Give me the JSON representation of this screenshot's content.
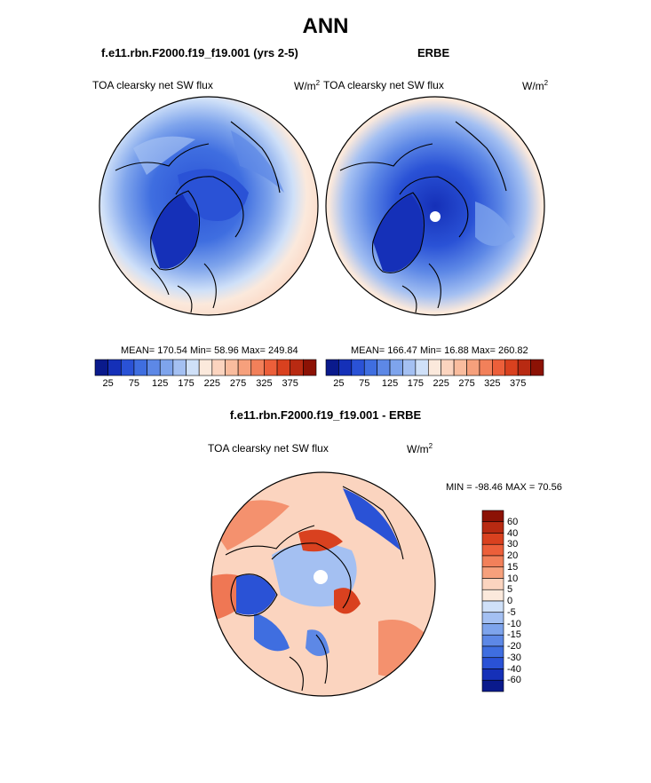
{
  "figure": {
    "title": "ANN",
    "left_title": "f.e11.rbn.F2000.f19_f19.001 (yrs 2-5)",
    "right_title": "ERBE",
    "diff_title": "f.e11.rbn.F2000.f19_f19.001 - ERBE"
  },
  "panels": {
    "model": {
      "variable": "TOA clearsky net SW flux",
      "units_base": "W/m",
      "units_exp": "2",
      "stats": "MEAN= 170.54  Min=  58.96  Max= 249.84"
    },
    "obs": {
      "variable": "TOA clearsky net SW flux",
      "units_base": "W/m",
      "units_exp": "2",
      "stats": "MEAN= 166.47  Min=  16.88  Max= 260.82"
    },
    "diff": {
      "variable": "TOA clearsky net SW flux",
      "units_base": "W/m",
      "units_exp": "2",
      "stats": "MIN = -98.46 MAX =  70.56"
    }
  },
  "colorbar_abs": {
    "colors": [
      "#0a1a8c",
      "#1530b8",
      "#2a52d6",
      "#3f6ee0",
      "#5d88e6",
      "#7ea4ec",
      "#a4c0f2",
      "#cfe0f8",
      "#fbe9dc",
      "#fbd4bf",
      "#f9bc9e",
      "#f6a07c",
      "#f2805a",
      "#ec5f3a",
      "#d9411f",
      "#b82a12",
      "#8c1205"
    ],
    "labels": [
      "25",
      "75",
      "125",
      "175",
      "225",
      "275",
      "325",
      "375"
    ]
  },
  "colorbar_diff": {
    "colors": [
      "#8c1205",
      "#b82a12",
      "#d9411f",
      "#ec5f3a",
      "#f2805a",
      "#f6a07c",
      "#fbd4bf",
      "#fbe9dc",
      "#cfe0f8",
      "#a4c0f2",
      "#7ea4ec",
      "#5d88e6",
      "#3f6ee0",
      "#2a52d6",
      "#1530b8",
      "#0a1a8c"
    ],
    "labels": [
      "60",
      "40",
      "30",
      "20",
      "15",
      "10",
      "5",
      "0",
      "-5",
      "-10",
      "-15",
      "-20",
      "-30",
      "-40",
      "-60"
    ]
  }
}
